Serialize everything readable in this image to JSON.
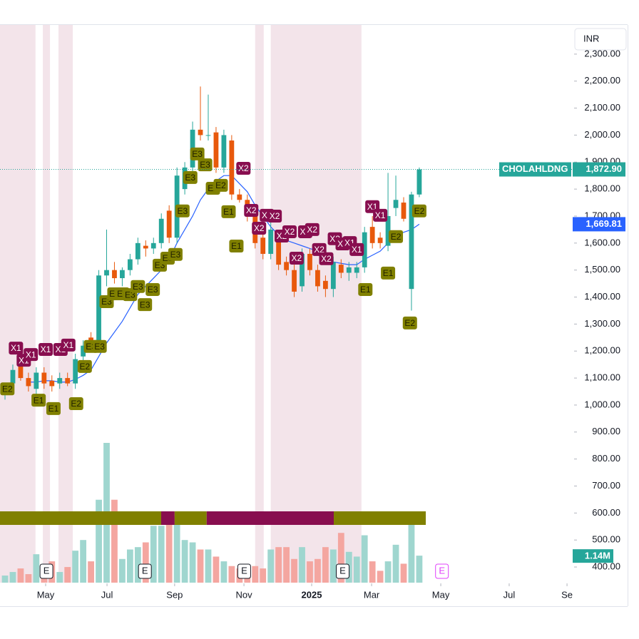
{
  "chart_data": {
    "type": "candlestick",
    "currency": "INR",
    "ylim": [
      342,
      2408
    ],
    "yticks": [
      {
        "value": 400,
        "label": "400.00"
      },
      {
        "value": 500,
        "label": "500.00"
      },
      {
        "value": 600,
        "label": "600.00"
      },
      {
        "value": 700,
        "label": "700.00"
      },
      {
        "value": 800,
        "label": "800.00"
      },
      {
        "value": 900,
        "label": "900.00"
      },
      {
        "value": 1000,
        "label": "1,000.00"
      },
      {
        "value": 1100,
        "label": "1,100.00"
      },
      {
        "value": 1200,
        "label": "1,200.00"
      },
      {
        "value": 1300,
        "label": "1,300.00"
      },
      {
        "value": 1400,
        "label": "1,400.00"
      },
      {
        "value": 1500,
        "label": "1,500.00"
      },
      {
        "value": 1600,
        "label": "1,600.00"
      },
      {
        "value": 1700,
        "label": "1,700.00"
      },
      {
        "value": 1800,
        "label": "1,800.00"
      },
      {
        "value": 1900,
        "label": "1,900.00"
      },
      {
        "value": 2000,
        "label": "2,000.00"
      },
      {
        "value": 2100,
        "label": "2,100.00"
      },
      {
        "value": 2200,
        "label": "2,200.00"
      },
      {
        "value": 2300,
        "label": "2,300.00"
      }
    ],
    "xlim": [
      -0.64,
      72.35
    ],
    "xticks": [
      {
        "value": 5.2,
        "label": "May"
      },
      {
        "value": 13.05,
        "label": "Jul"
      },
      {
        "value": 21.7,
        "label": "Sep"
      },
      {
        "value": 30.57,
        "label": "Nov"
      },
      {
        "value": 39.23,
        "label": "2025"
      },
      {
        "value": 46.9,
        "label": "Mar"
      },
      {
        "value": 55.75,
        "label": "May"
      },
      {
        "value": 64.5,
        "label": "Jul"
      },
      {
        "value": 71.9,
        "label": "Se"
      }
    ],
    "up_color": "#26a69a",
    "down_color": "#e8590c",
    "up_volume_color": "#9fd6cf",
    "down_volume_color": "#f4a6a0",
    "series": [
      {
        "name": "CHOLAHLDNG",
        "open": [
          1040,
          1080,
          1150,
          1100,
          1060,
          1120,
          1090,
          1080,
          1100,
          1080,
          1180,
          1250,
          1230,
          1480,
          1500,
          1470,
          1500,
          1540,
          1590,
          1580,
          1600,
          1720,
          1620,
          1800,
          1880,
          2020,
          2000,
          2010,
          1880,
          1980,
          1780,
          1760,
          1700,
          1620,
          1560,
          1620,
          1530,
          1500,
          1440,
          1560,
          1500,
          1460,
          1430,
          1520,
          1490,
          1490,
          1510,
          1660,
          1620,
          1590,
          1730,
          1750,
          1430,
          1780
        ],
        "high": [
          1070,
          1150,
          1170,
          1120,
          1140,
          1140,
          1110,
          1120,
          1120,
          1190,
          1240,
          1270,
          1500,
          1650,
          1530,
          1510,
          1560,
          1620,
          1610,
          1620,
          1710,
          1740,
          1880,
          1900,
          2050,
          2180,
          2150,
          2030,
          2020,
          2000,
          1800,
          1780,
          1720,
          1640,
          1680,
          1640,
          1550,
          1520,
          1580,
          1580,
          1520,
          1480,
          1550,
          1540,
          1530,
          1530,
          1660,
          1700,
          1640,
          1860,
          1850,
          1770,
          1790,
          1880
        ],
        "low": [
          1020,
          1060,
          1090,
          1050,
          1040,
          1060,
          1050,
          1060,
          1070,
          1060,
          1160,
          1210,
          1220,
          1440,
          1450,
          1440,
          1480,
          1520,
          1550,
          1560,
          1580,
          1600,
          1600,
          1780,
          1860,
          1980,
          1980,
          1860,
          1860,
          1760,
          1750,
          1680,
          1580,
          1540,
          1540,
          1500,
          1480,
          1400,
          1420,
          1480,
          1420,
          1400,
          1400,
          1470,
          1460,
          1470,
          1490,
          1580,
          1580,
          1570,
          1700,
          1680,
          1350,
          1770
        ],
        "close": [
          1060,
          1130,
          1100,
          1070,
          1120,
          1080,
          1070,
          1100,
          1080,
          1170,
          1220,
          1230,
          1480,
          1500,
          1470,
          1500,
          1540,
          1600,
          1580,
          1600,
          1690,
          1620,
          1850,
          1880,
          2020,
          2000,
          2000,
          1880,
          2000,
          1780,
          1760,
          1700,
          1600,
          1560,
          1650,
          1520,
          1500,
          1420,
          1560,
          1500,
          1440,
          1430,
          1530,
          1490,
          1510,
          1510,
          1640,
          1600,
          1600,
          1700,
          1760,
          1690,
          1780,
          1872.9
        ],
        "volume": [
          300000,
          450000,
          600000,
          360000,
          1200000,
          360000,
          900000,
          450000,
          660000,
          1350000,
          1800000,
          900000,
          3500000,
          5900000,
          3500000,
          1000000,
          1400000,
          1500000,
          1700000,
          2400000,
          2400000,
          2600000,
          2800000,
          1800000,
          1700000,
          1400000,
          1400000,
          1100000,
          900000,
          700000,
          600000,
          500000,
          700000,
          600000,
          1400000,
          1500000,
          1500000,
          1000000,
          1500000,
          900000,
          1000000,
          1500000,
          1400000,
          2100000,
          1300000,
          1100000,
          2000000,
          900000,
          500000,
          900000,
          1600000,
          800000,
          2900000,
          1140000
        ]
      },
      {
        "name": "MA",
        "color": "#2962ff",
        "values": [
          null,
          null,
          null,
          1085,
          1085,
          1090,
          1090,
          1085,
          1085,
          1095,
          1110,
          1130,
          1180,
          1230,
          1270,
          1310,
          1360,
          1410,
          1440,
          1470,
          1500,
          1540,
          1600,
          1650,
          1700,
          1760,
          1800,
          1830,
          1850,
          1850,
          1820,
          1790,
          1740,
          1700,
          1660,
          1630,
          1610,
          1600,
          1590,
          1580,
          1570,
          1540,
          1530,
          1525,
          1520,
          1520,
          1540,
          1555,
          1570,
          1600,
          1630,
          1640,
          1650,
          1669.81
        ]
      }
    ],
    "last_price": {
      "value": 1872.9,
      "label": "1,872.90"
    },
    "ma_price": {
      "value": 1669.81,
      "label": "1,669.81"
    },
    "volume_label": {
      "value": 1140000,
      "label": "1.14M"
    },
    "shaded_ranges": [
      [
        -0.64,
        3.9
      ],
      [
        4.84,
        5.75
      ],
      [
        6.84,
        8.67
      ],
      [
        32.0,
        33.1
      ],
      [
        34.0,
        45.6
      ]
    ],
    "strip": [
      {
        "start": -0.64,
        "end": 19.98,
        "color": "#808000"
      },
      {
        "start": 19.98,
        "end": 21.7,
        "color": "#880e4f"
      },
      {
        "start": 21.7,
        "end": 25.8,
        "color": "#808000"
      },
      {
        "start": 25.8,
        "end": 42.06,
        "color": "#880e4f"
      },
      {
        "start": 42.06,
        "end": 53.83,
        "color": "#808000"
      }
    ],
    "events": [
      {
        "label": "E",
        "i": 5.3
      },
      {
        "label": "E",
        "i": 17.9
      },
      {
        "label": "E",
        "i": 30.6
      },
      {
        "label": "E",
        "i": 43.2
      },
      {
        "label": "E",
        "i": 55.9
      }
    ],
    "signals": [
      {
        "label": "E2",
        "i": 0.3,
        "price": 1060
      },
      {
        "label": "X1",
        "i": 1.4,
        "price": 1211
      },
      {
        "label": "X1",
        "i": 2.4,
        "price": 1166
      },
      {
        "label": "X1",
        "i": 3.3,
        "price": 1187
      },
      {
        "label": "E1",
        "i": 4.3,
        "price": 1018
      },
      {
        "label": "X1",
        "i": 5.2,
        "price": 1206
      },
      {
        "label": "E1",
        "i": 6.2,
        "price": 987
      },
      {
        "label": "X1",
        "i": 7.1,
        "price": 1206
      },
      {
        "label": "X1",
        "i": 8.1,
        "price": 1222
      },
      {
        "label": "E2",
        "i": 9.1,
        "price": 1005
      },
      {
        "label": "E2",
        "i": 10.2,
        "price": 1143
      },
      {
        "label": "E3",
        "i": 11.0,
        "price": 1217
      },
      {
        "label": "E3",
        "i": 12.1,
        "price": 1217
      },
      {
        "label": "E3",
        "i": 13.0,
        "price": 1383
      },
      {
        "label": "E3",
        "i": 14.0,
        "price": 1412
      },
      {
        "label": "E3",
        "i": 15.0,
        "price": 1412
      },
      {
        "label": "E3",
        "i": 16.0,
        "price": 1409
      },
      {
        "label": "E3",
        "i": 17.0,
        "price": 1439
      },
      {
        "label": "E3",
        "i": 17.9,
        "price": 1372
      },
      {
        "label": "E3",
        "i": 18.9,
        "price": 1428
      },
      {
        "label": "E3",
        "i": 19.8,
        "price": 1518
      },
      {
        "label": "E3",
        "i": 20.8,
        "price": 1544
      },
      {
        "label": "E3",
        "i": 21.8,
        "price": 1558
      },
      {
        "label": "E3",
        "i": 22.7,
        "price": 1719
      },
      {
        "label": "E3",
        "i": 23.7,
        "price": 1843
      },
      {
        "label": "E3",
        "i": 24.6,
        "price": 1930
      },
      {
        "label": "E3",
        "i": 25.6,
        "price": 1890
      },
      {
        "label": "E2",
        "i": 26.6,
        "price": 1803
      },
      {
        "label": "E2",
        "i": 27.6,
        "price": 1814
      },
      {
        "label": "E1",
        "i": 28.6,
        "price": 1716
      },
      {
        "label": "E1",
        "i": 29.6,
        "price": 1589
      },
      {
        "label": "X2",
        "i": 30.5,
        "price": 1877
      },
      {
        "label": "X2",
        "i": 31.5,
        "price": 1721
      },
      {
        "label": "X2",
        "i": 32.5,
        "price": 1655
      },
      {
        "label": "X2",
        "i": 33.5,
        "price": 1703
      },
      {
        "label": "X2",
        "i": 34.5,
        "price": 1700
      },
      {
        "label": "X2",
        "i": 35.4,
        "price": 1626
      },
      {
        "label": "X2",
        "i": 36.4,
        "price": 1642
      },
      {
        "label": "X2",
        "i": 37.3,
        "price": 1544
      },
      {
        "label": "X2",
        "i": 38.4,
        "price": 1642
      },
      {
        "label": "X2",
        "i": 39.3,
        "price": 1650
      },
      {
        "label": "X2",
        "i": 40.2,
        "price": 1576
      },
      {
        "label": "X2",
        "i": 41.1,
        "price": 1542
      },
      {
        "label": "X2",
        "i": 42.2,
        "price": 1616
      },
      {
        "label": "X1",
        "i": 43.2,
        "price": 1597
      },
      {
        "label": "X1",
        "i": 44.1,
        "price": 1602
      },
      {
        "label": "X1",
        "i": 45.0,
        "price": 1576
      },
      {
        "label": "E1",
        "i": 46.1,
        "price": 1428
      },
      {
        "label": "X1",
        "i": 47.0,
        "price": 1735
      },
      {
        "label": "X1",
        "i": 48.0,
        "price": 1703
      },
      {
        "label": "E1",
        "i": 49.0,
        "price": 1489
      },
      {
        "label": "E2",
        "i": 50.0,
        "price": 1624
      },
      {
        "label": "E2",
        "i": 51.8,
        "price": 1304
      },
      {
        "label": "E2",
        "i": 53.0,
        "price": 1719
      }
    ]
  }
}
